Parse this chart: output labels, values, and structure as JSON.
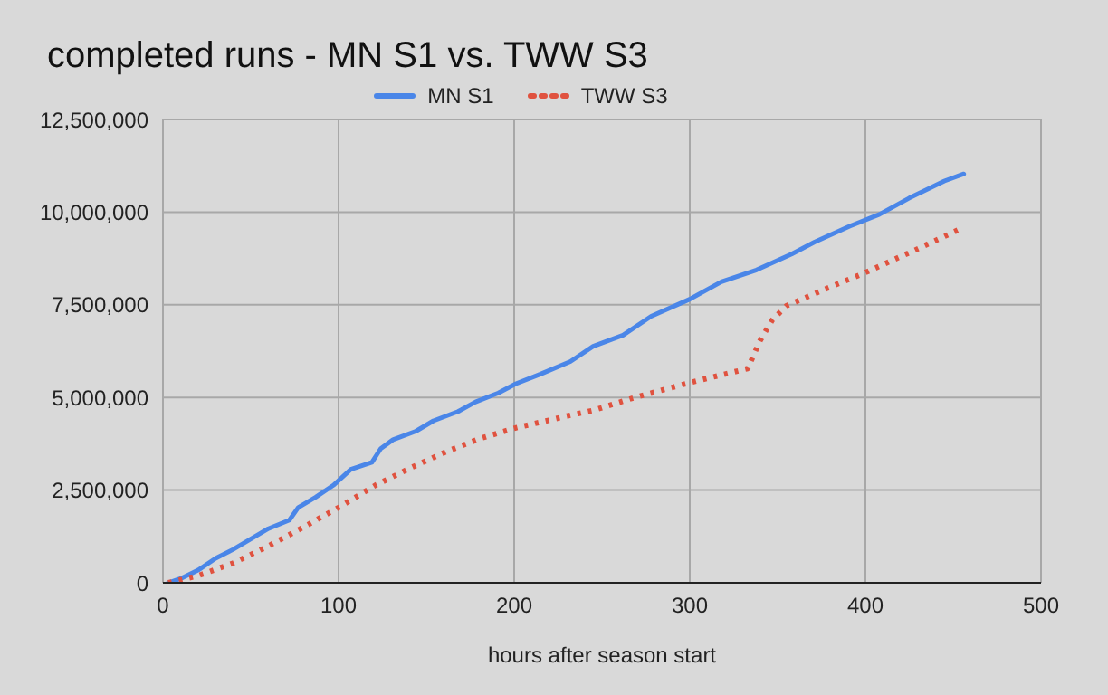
{
  "chart_data": {
    "type": "line",
    "title": "completed runs - MN S1 vs. TWW S3",
    "xlabel": "hours after season start",
    "xlim": [
      0,
      500
    ],
    "xticks": [
      0,
      100,
      200,
      300,
      400,
      500
    ],
    "ylim": [
      0,
      12500000
    ],
    "yticks": [
      {
        "value": 0,
        "label": "0"
      },
      {
        "value": 2500000,
        "label": "2,500,000"
      },
      {
        "value": 5000000,
        "label": "5,000,000"
      },
      {
        "value": 7500000,
        "label": "7,500,000"
      },
      {
        "value": 10000000,
        "label": "10,000,000"
      },
      {
        "value": 12500000,
        "label": "12,500,000"
      }
    ],
    "grid": true,
    "legend": "top",
    "marker": "none",
    "series": [
      {
        "name": "MN S1",
        "color": "#4a86e8",
        "line_style": "solid",
        "x": [
          3,
          10,
          20,
          30,
          40,
          50,
          60,
          72,
          77,
          87,
          97,
          107,
          119,
          124,
          131,
          144,
          154,
          168,
          178,
          191,
          201,
          215,
          232,
          245,
          262,
          278,
          300,
          318,
          338,
          358,
          371,
          391,
          408,
          425,
          445,
          456
        ],
        "values": [
          0,
          110000,
          340000,
          660000,
          900000,
          1180000,
          1460000,
          1690000,
          2030000,
          2310000,
          2630000,
          3060000,
          3250000,
          3620000,
          3860000,
          4090000,
          4370000,
          4620000,
          4880000,
          5120000,
          5370000,
          5630000,
          5970000,
          6380000,
          6680000,
          7190000,
          7650000,
          8120000,
          8440000,
          8870000,
          9190000,
          9620000,
          9940000,
          10380000,
          10840000,
          11030000
        ]
      },
      {
        "name": "TWW S3",
        "color": "#e0523f",
        "line_style": "dotted",
        "x": [
          3,
          20,
          40,
          60,
          80,
          100,
          121,
          141,
          161,
          181,
          201,
          232,
          245,
          268,
          300,
          333,
          340,
          347,
          355,
          378,
          400,
          428,
          456
        ],
        "values": [
          0,
          190000,
          530000,
          990000,
          1500000,
          2030000,
          2630000,
          3100000,
          3530000,
          3900000,
          4180000,
          4520000,
          4650000,
          4990000,
          5400000,
          5780000,
          6530000,
          7090000,
          7470000,
          7940000,
          8370000,
          8970000,
          9590000
        ]
      }
    ]
  }
}
